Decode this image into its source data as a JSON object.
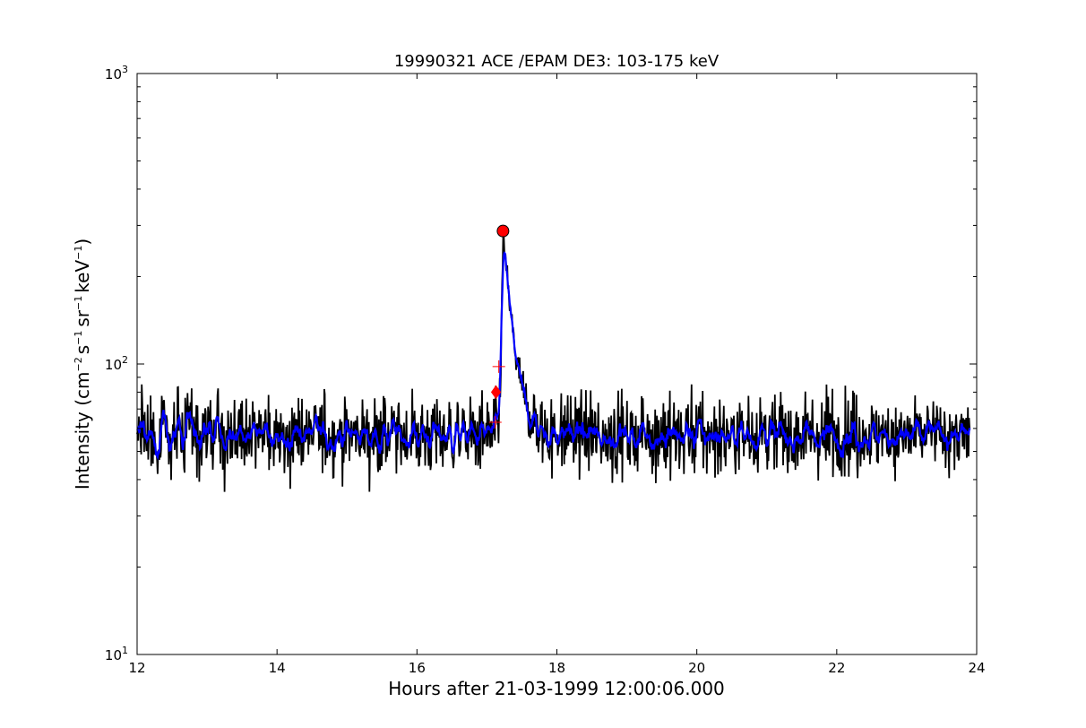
{
  "chart_data": {
    "type": "line",
    "title": "19990321 ACE /EPAM DE3: 103-175 keV",
    "xlabel": "Hours after 21-03-1999 12:00:06.000",
    "ylabel": {
      "prefix": "Intensity (cm",
      "s1": "s",
      "sr": "sr",
      "kev": "keV",
      "suffix": ")",
      "sup_m2": "−2",
      "sup_m1": "−1"
    },
    "xlim": [
      12,
      24
    ],
    "ylim": [
      10,
      1000
    ],
    "yscale": "log",
    "xticks": [
      12,
      14,
      16,
      18,
      20,
      22,
      24
    ],
    "yticks": [
      {
        "value": 10,
        "base": "10",
        "exp": "1"
      },
      {
        "value": 100,
        "base": "10",
        "exp": "2"
      },
      {
        "value": 1000,
        "base": "10",
        "exp": "3"
      }
    ],
    "series": [
      {
        "color": "#000000",
        "style": "raw",
        "baseline": 57,
        "peak_x": 17.23,
        "peak_y": 285
      },
      {
        "color": "#0000ff",
        "style": "smoothed",
        "baseline": 57,
        "peak_x": 17.23,
        "peak_y": 280
      }
    ],
    "markers": [
      {
        "kind": "circle",
        "color": "#ff0000",
        "x": 17.23,
        "y": 287
      },
      {
        "kind": "diamond",
        "color": "#ff0000",
        "x": 17.13,
        "y": 80
      },
      {
        "kind": "plus",
        "color": "#ff0000",
        "x": 17.17,
        "y": 98
      },
      {
        "kind": "plus",
        "color": "#ff0000",
        "x": 17.12,
        "y": 63
      }
    ]
  }
}
